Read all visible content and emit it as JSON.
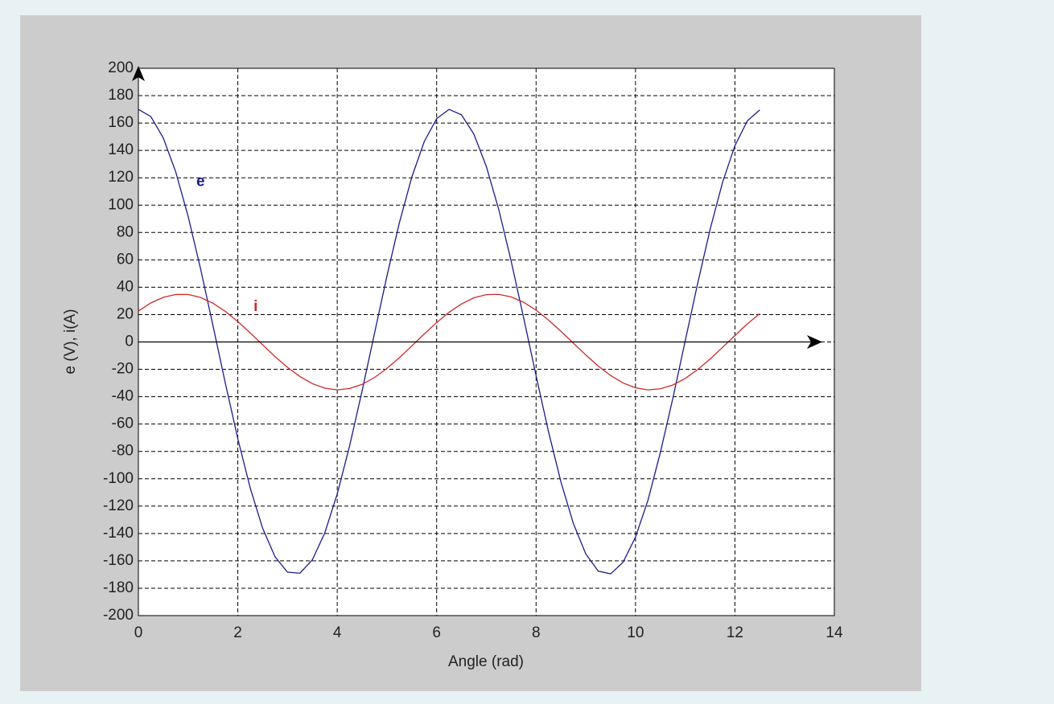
{
  "chart_data": {
    "type": "line",
    "x_label": "Angle (rad)",
    "y_label": "e (V), i(A)",
    "x": [
      0,
      0.25,
      0.5,
      0.75,
      1,
      1.25,
      1.5,
      1.75,
      2,
      2.25,
      2.5,
      2.75,
      3,
      3.25,
      3.5,
      3.75,
      4,
      4.25,
      4.5,
      4.75,
      5,
      5.25,
      5.5,
      5.75,
      6,
      6.25,
      6.5,
      6.75,
      7,
      7.25,
      7.5,
      7.75,
      8,
      8.25,
      8.5,
      8.75,
      9,
      9.25,
      9.5,
      9.75,
      10,
      10.25,
      10.5,
      10.75,
      11,
      11.25,
      11.5,
      11.75,
      12,
      12.25,
      12.5
    ],
    "series": [
      {
        "name": "e",
        "color": "#1c1c8a",
        "values": [
          170,
          164.7,
          149.2,
          124.4,
          91.9,
          53.6,
          12.0,
          -30.3,
          -70.7,
          -106.8,
          -136.2,
          -157.1,
          -168.3,
          -169.0,
          -159.2,
          -139.5,
          -111.1,
          -75.8,
          -35.8,
          6.4,
          48.2,
          87.1,
          120.5,
          146.4,
          163.2,
          170.0,
          166.0,
          151.8,
          128.2,
          96.7,
          58.9,
          17.6,
          -24.7,
          -65.6,
          -102.3,
          -132.7,
          -154.9,
          -167.5,
          -169.5,
          -161.0,
          -142.6,
          -115.8,
          -80.8,
          -41.4,
          0.8,
          42.7,
          82.2,
          116.5,
          143.5,
          161.6,
          169.6
        ]
      },
      {
        "name": "i",
        "color": "#cc2a2a",
        "values": [
          22.6,
          28.5,
          32.6,
          34.7,
          34.7,
          32.5,
          28.3,
          22.3,
          14.9,
          6.6,
          -2.1,
          -10.7,
          -18.6,
          -25.3,
          -30.5,
          -33.8,
          -35.0,
          -34.0,
          -31.0,
          -26.0,
          -19.3,
          -11.5,
          -2.9,
          5.8,
          14.2,
          21.7,
          27.8,
          32.3,
          34.6,
          34.8,
          32.9,
          29.0,
          23.2,
          16.0,
          7.8,
          -0.9,
          -9.5,
          -17.6,
          -24.5,
          -30.0,
          -33.5,
          -35.0,
          -34.2,
          -31.5,
          -26.7,
          -20.2,
          -12.5,
          -4.0,
          4.7,
          13.2,
          20.7
        ]
      }
    ],
    "annotations": [
      {
        "text": "e",
        "x": 1.25,
        "y": 117
      },
      {
        "text": "i",
        "x": 2.36,
        "y": 25.5
      }
    ],
    "xlim": [
      0,
      14
    ],
    "xticks": [
      0,
      2,
      4,
      6,
      8,
      10,
      12,
      14
    ],
    "ylim": [
      -200,
      200
    ],
    "yticks": [
      -200,
      -180,
      -160,
      -140,
      -120,
      -100,
      -80,
      -60,
      -40,
      -20,
      0,
      20,
      40,
      60,
      80,
      100,
      120,
      140,
      160,
      180,
      200
    ],
    "grid": true
  }
}
